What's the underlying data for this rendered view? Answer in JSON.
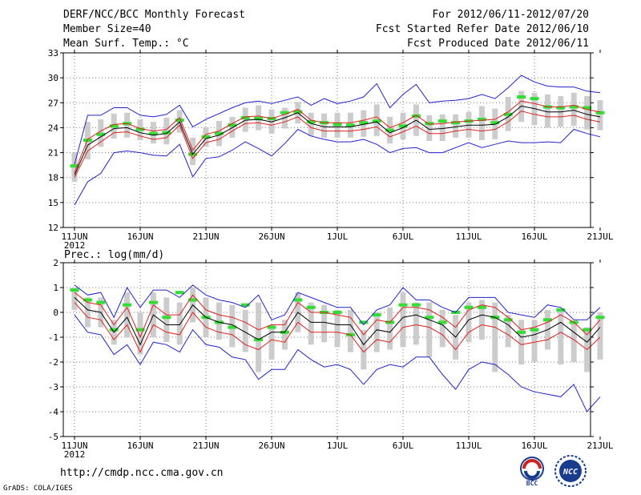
{
  "header": {
    "title": "DERF/NCC/BCC Monthly Forecast",
    "member": "Member Size=40",
    "variable": "Mean Surf. Temp.: °C",
    "period": "For 2012/06/11-2012/07/20",
    "started": "Fcst Started Refer Date 2012/06/10",
    "produced": "Fcst Produced Date 2012/06/11"
  },
  "footer": {
    "url": "http://cmdp.ncc.cma.gov.cn",
    "credit": "GrADS: COLA/IGES",
    "logo_bcc": "BCC",
    "logo_ncc": "NCC"
  },
  "colors": {
    "band": "#cccccc",
    "green": "#33dd33",
    "red": "#dd2222",
    "blue": "#2222cc",
    "black": "#000000",
    "grid": "#777777"
  },
  "chart_data": [
    {
      "type": "line",
      "title": "Mean Surf. Temp.: °C",
      "ylim": [
        12,
        33
      ],
      "yticks": [
        12,
        15,
        18,
        21,
        24,
        27,
        30,
        33
      ],
      "xticks": [
        {
          "day": 0,
          "label": "11JUN"
        },
        {
          "day": 5,
          "label": "16JUN"
        },
        {
          "day": 10,
          "label": "21JUN"
        },
        {
          "day": 15,
          "label": "26JUN"
        },
        {
          "day": 20,
          "label": "1JUL"
        },
        {
          "day": 25,
          "label": "6JUL"
        },
        {
          "day": 30,
          "label": "11JUL"
        },
        {
          "day": 35,
          "label": "16JUL"
        },
        {
          "day": 40,
          "label": "21JUL"
        }
      ],
      "year_label": "2012",
      "series": [
        {
          "name": "max",
          "color": "blue",
          "values": [
            14.7,
            17.5,
            18.5,
            21.0,
            21.2,
            21.0,
            20.7,
            20.6,
            22.0,
            18.1,
            20.3,
            20.5,
            21.3,
            22.3,
            21.5,
            20.6,
            22.1,
            23.8,
            23.0,
            22.6,
            22.3,
            22.3,
            22.6,
            22.0,
            21.0,
            21.5,
            21.6,
            21.0,
            21.0,
            21.6,
            22.2,
            21.6,
            22.0,
            22.4,
            22.2,
            22.2,
            22.3,
            22.2,
            23.8,
            23.3,
            22.9
          ]
        },
        {
          "name": "max",
          "color": "blue",
          "values": [
            19.6,
            25.5,
            25.5,
            26.4,
            26.4,
            25.5,
            25.3,
            25.6,
            26.7,
            24.1,
            25.0,
            25.7,
            26.4,
            27.0,
            27.2,
            26.9,
            27.3,
            27.7,
            26.7,
            27.5,
            26.9,
            27.2,
            27.7,
            29.3,
            26.4,
            28.0,
            29.2,
            27.0,
            27.2,
            27.3,
            27.5,
            28.0,
            27.5,
            28.8,
            30.3,
            29.5,
            29.0,
            28.9,
            28.9,
            28.4,
            28.2
          ]
        },
        {
          "name": "max",
          "color": "red",
          "values": [
            18.0,
            21.2,
            22.3,
            23.4,
            23.5,
            23.0,
            22.6,
            22.8,
            24.3,
            20.3,
            22.2,
            22.6,
            23.6,
            24.5,
            24.6,
            24.3,
            24.7,
            25.3,
            24.0,
            23.6,
            23.6,
            23.6,
            23.8,
            24.1,
            22.9,
            23.5,
            24.2,
            23.3,
            23.3,
            23.6,
            23.8,
            23.6,
            23.8,
            24.7,
            26.0,
            25.6,
            25.3,
            25.3,
            25.5,
            25.0,
            24.7
          ]
        },
        {
          "name": "max",
          "color": "red",
          "values": [
            18.6,
            22.6,
            23.6,
            24.4,
            24.5,
            23.9,
            23.6,
            23.8,
            25.2,
            21.3,
            23.2,
            23.6,
            24.5,
            25.3,
            25.4,
            25.1,
            25.6,
            26.2,
            24.9,
            24.6,
            24.6,
            24.6,
            24.9,
            25.3,
            24.0,
            24.6,
            25.5,
            24.4,
            24.5,
            24.7,
            24.8,
            24.9,
            25.0,
            25.9,
            27.2,
            26.9,
            26.5,
            26.5,
            26.7,
            26.2,
            25.9
          ]
        },
        {
          "name": "max",
          "color": "black",
          "values": [
            18.3,
            21.9,
            22.9,
            23.9,
            24.0,
            23.4,
            23.1,
            23.3,
            24.7,
            20.8,
            22.7,
            23.1,
            24.0,
            24.9,
            25.0,
            24.7,
            25.2,
            25.8,
            24.5,
            24.1,
            24.1,
            24.1,
            24.4,
            24.7,
            23.4,
            24.0,
            24.9,
            23.8,
            23.9,
            24.1,
            24.3,
            24.3,
            24.4,
            25.3,
            26.6,
            26.3,
            25.9,
            25.9,
            26.1,
            25.6,
            25.3
          ]
        }
      ],
      "band_max": [
        21.0,
        24.7,
        25.0,
        25.7,
        25.8,
        25.0,
        24.7,
        25.2,
        26.1,
        22.8,
        24.0,
        24.8,
        25.3,
        26.4,
        26.7,
        26.2,
        26.4,
        27.1,
        25.8,
        25.7,
        25.8,
        25.8,
        26.1,
        26.8,
        25.3,
        25.8,
        26.8,
        25.5,
        25.6,
        25.6,
        25.9,
        26.6,
        26.3,
        27.7,
        28.4,
        28.2,
        28.0,
        27.8,
        28.2,
        27.8,
        27.3
      ],
      "band_min": [
        17.5,
        20.2,
        21.7,
        22.7,
        22.8,
        22.5,
        22.1,
        22.0,
        23.4,
        19.5,
        21.7,
        21.8,
        22.8,
        23.5,
        23.7,
        23.3,
        23.9,
        24.5,
        23.0,
        22.8,
        22.8,
        22.8,
        22.9,
        23.0,
        22.1,
        22.6,
        23.0,
        22.4,
        22.4,
        22.8,
        22.8,
        22.5,
        22.6,
        23.6,
        24.7,
        24.3,
        24.0,
        24.1,
        24.2,
        23.8,
        23.7
      ],
      "obs_green": [
        19.4,
        22.5,
        23.2,
        24.2,
        24.5,
        23.8,
        23.3,
        23.4,
        24.9,
        20.8,
        22.9,
        23.3,
        24.3,
        25.2,
        25.1,
        25.1,
        25.8,
        25.9,
        24.7,
        24.6,
        24.4,
        24.3,
        24.6,
        24.8,
        23.7,
        24.2,
        25.4,
        24.5,
        24.8,
        24.6,
        24.8,
        25.0,
        24.6,
        25.6,
        27.7,
        27.5,
        26.5,
        26.4,
        26.5,
        26.4,
        25.8
      ]
    },
    {
      "type": "line",
      "title": "Prec.: log(mm/d)",
      "ylim": [
        -5,
        2
      ],
      "yticks": [
        -5,
        -4,
        -3,
        -2,
        -1,
        0,
        1,
        2
      ],
      "xticks": [
        {
          "day": 0,
          "label": "11JUN"
        },
        {
          "day": 5,
          "label": "16JUN"
        },
        {
          "day": 10,
          "label": "21JUN"
        },
        {
          "day": 15,
          "label": "26JUN"
        },
        {
          "day": 20,
          "label": "1JUL"
        },
        {
          "day": 25,
          "label": "6JUL"
        },
        {
          "day": 30,
          "label": "11JUL"
        },
        {
          "day": 35,
          "label": "16JUL"
        },
        {
          "day": 40,
          "label": "21JUL"
        }
      ],
      "year_label": "2012",
      "series": [
        {
          "name": "max",
          "color": "blue",
          "values": [
            -0.1,
            -0.8,
            -0.9,
            -1.7,
            -1.3,
            -2.1,
            -1.2,
            -1.3,
            -1.6,
            -0.7,
            -1.3,
            -1.4,
            -1.8,
            -1.9,
            -2.7,
            -2.3,
            -2.3,
            -1.5,
            -1.9,
            -2.2,
            -2.1,
            -2.3,
            -2.9,
            -2.3,
            -2.1,
            -2.2,
            -1.8,
            -1.8,
            -2.5,
            -3.1,
            -2.3,
            -2.0,
            -2.1,
            -2.5,
            -3.0,
            -3.2,
            -3.3,
            -3.4,
            -2.9,
            -4.0,
            -3.4
          ]
        },
        {
          "name": "max",
          "color": "blue",
          "values": [
            1.1,
            0.7,
            0.8,
            -0.2,
            1.0,
            0.2,
            0.9,
            0.9,
            0.6,
            1.1,
            0.7,
            0.5,
            0.4,
            0.2,
            0.7,
            -0.3,
            -0.1,
            0.8,
            0.6,
            0.4,
            0.2,
            0.2,
            -0.5,
            0.1,
            0.3,
            1.0,
            0.5,
            0.5,
            0.2,
            0.0,
            0.6,
            0.6,
            0.6,
            0.0,
            -0.1,
            -0.2,
            0.3,
            0.2,
            -0.3,
            -0.3,
            0.2
          ]
        },
        {
          "name": "max",
          "color": "red",
          "values": [
            0.4,
            -0.2,
            -0.3,
            -1.1,
            -0.5,
            -1.6,
            -0.5,
            -0.8,
            -0.9,
            -0.0,
            -0.6,
            -0.8,
            -0.9,
            -1.3,
            -1.5,
            -1.1,
            -1.2,
            -0.4,
            -0.8,
            -0.8,
            -0.8,
            -0.9,
            -1.6,
            -1.1,
            -1.2,
            -0.6,
            -0.5,
            -0.6,
            -0.9,
            -1.5,
            -0.8,
            -0.5,
            -0.6,
            -0.9,
            -1.3,
            -1.2,
            -1.1,
            -0.8,
            -1.1,
            -1.5,
            -1.0
          ]
        },
        {
          "name": "max",
          "color": "red",
          "values": [
            0.8,
            0.4,
            0.3,
            -0.5,
            0.2,
            -1.0,
            0.3,
            -0.1,
            -0.1,
            0.7,
            0.1,
            -0.1,
            -0.2,
            -0.4,
            -0.7,
            -0.5,
            -0.5,
            0.4,
            0.0,
            -0.0,
            -0.1,
            -0.2,
            -0.9,
            -0.3,
            -0.4,
            0.2,
            0.2,
            0.1,
            -0.2,
            -0.6,
            0.1,
            0.3,
            0.2,
            -0.2,
            -0.7,
            -0.6,
            -0.4,
            -0.1,
            -0.4,
            -0.9,
            -0.3
          ]
        },
        {
          "name": "max",
          "color": "black",
          "values": [
            0.6,
            0.1,
            0.0,
            -0.8,
            -0.2,
            -1.3,
            -0.1,
            -0.5,
            -0.5,
            0.3,
            -0.2,
            -0.4,
            -0.5,
            -0.8,
            -1.1,
            -0.8,
            -0.8,
            0.0,
            -0.4,
            -0.4,
            -0.5,
            -0.5,
            -1.3,
            -0.7,
            -0.8,
            -0.2,
            -0.1,
            -0.3,
            -0.5,
            -1.0,
            -0.3,
            -0.1,
            -0.2,
            -0.5,
            -1.0,
            -0.9,
            -0.7,
            -0.4,
            -0.8,
            -1.2,
            -0.6
          ]
        }
      ],
      "band_max": [
        1.0,
        0.6,
        0.6,
        -0.3,
        0.8,
        0.0,
        0.8,
        0.6,
        0.4,
        1.0,
        0.6,
        0.4,
        0.3,
        0.1,
        0.4,
        -0.5,
        -0.3,
        0.8,
        0.4,
        0.3,
        0.1,
        0.1,
        -0.7,
        0.0,
        0.2,
        0.8,
        0.4,
        0.4,
        0.1,
        -0.1,
        0.4,
        0.5,
        0.4,
        -0.1,
        -0.3,
        -0.3,
        0.1,
        0.1,
        -0.4,
        -0.6,
        0.0
      ],
      "band_min": [
        0.1,
        -0.6,
        -0.6,
        -1.3,
        -1.0,
        -1.7,
        -1.0,
        -1.2,
        -1.3,
        -0.4,
        -1.0,
        -1.1,
        -1.4,
        -1.6,
        -2.4,
        -1.9,
        -1.5,
        -0.8,
        -1.3,
        -1.2,
        -1.4,
        -1.6,
        -2.3,
        -1.6,
        -1.5,
        -1.4,
        -1.3,
        -1.8,
        -1.4,
        -1.9,
        -1.2,
        -1.1,
        -2.4,
        -1.4,
        -2.1,
        -2.0,
        -1.5,
        -2.1,
        -2.0,
        -2.4,
        -1.9
      ],
      "obs_green": [
        0.9,
        0.5,
        0.4,
        -0.7,
        0.3,
        -0.7,
        0.4,
        -0.2,
        0.8,
        0.5,
        -0.2,
        -0.4,
        -0.6,
        0.3,
        -1.1,
        -0.6,
        -0.8,
        0.5,
        0.2,
        0.0,
        0.0,
        -0.9,
        -0.4,
        -0.1,
        -0.4,
        0.3,
        0.3,
        -0.2,
        -0.4,
        0.0,
        0.2,
        0.2,
        -0.2,
        -0.3,
        -0.8,
        -0.7,
        -0.3,
        0.1,
        -0.4,
        -0.7,
        -0.2
      ]
    }
  ]
}
